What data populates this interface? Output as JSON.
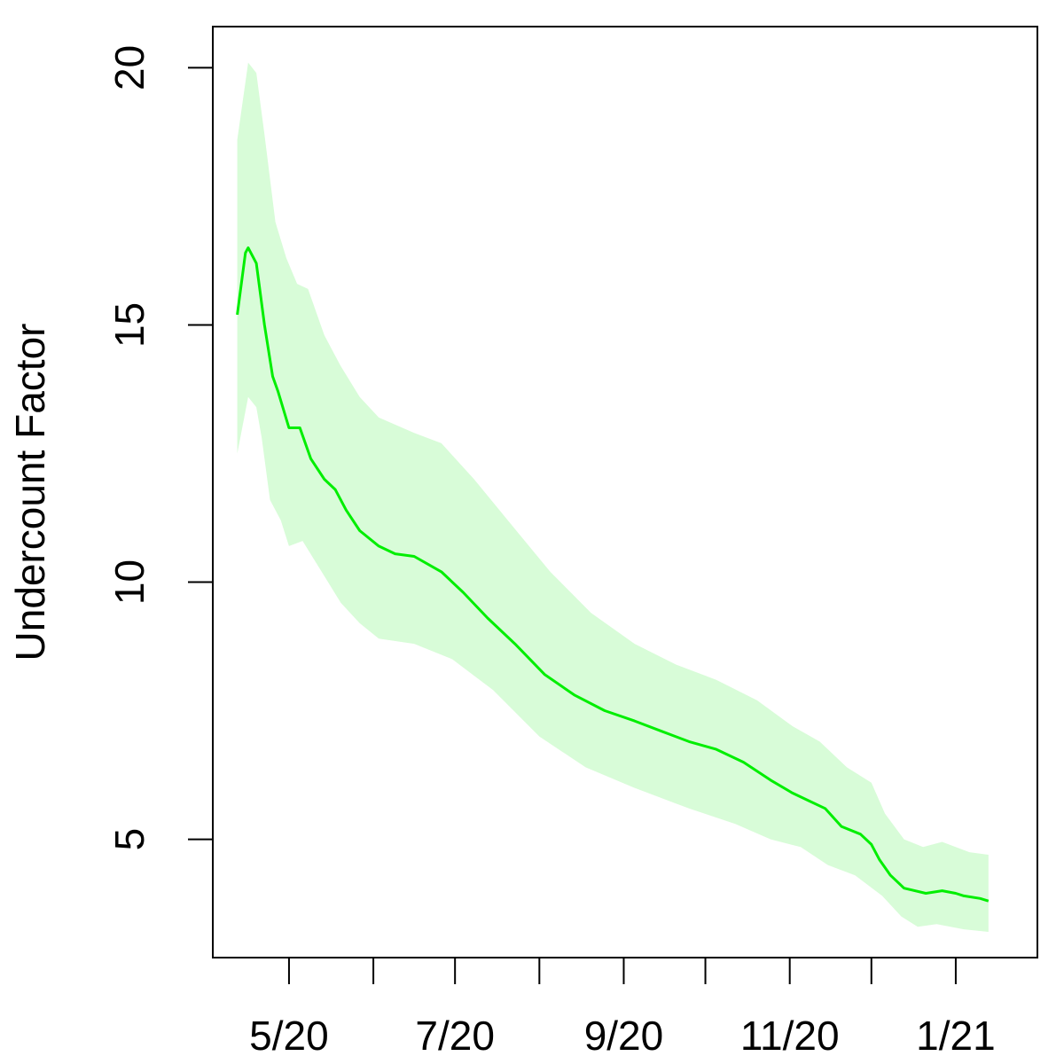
{
  "chart_data": {
    "type": "line",
    "title": "",
    "xlabel": "",
    "ylabel": "Undercount Factor",
    "x_tick_labels": [
      {
        "date": "2020-05-01",
        "label": "5/20",
        "show_label": true
      },
      {
        "date": "2020-06-01",
        "label": "6/20",
        "show_label": false
      },
      {
        "date": "2020-07-01",
        "label": "7/20",
        "show_label": true
      },
      {
        "date": "2020-08-01",
        "label": "8/20",
        "show_label": false
      },
      {
        "date": "2020-09-01",
        "label": "9/20",
        "show_label": true
      },
      {
        "date": "2020-10-01",
        "label": "10/20",
        "show_label": false
      },
      {
        "date": "2020-11-01",
        "label": "11/20",
        "show_label": true
      },
      {
        "date": "2020-12-01",
        "label": "12/20",
        "show_label": false
      },
      {
        "date": "2021-01-01",
        "label": "1/21",
        "show_label": true
      }
    ],
    "y_ticks": [
      5,
      10,
      15,
      20
    ],
    "y_tick_labels": [
      "5",
      "10",
      "15",
      "20"
    ],
    "xlim": [
      "2020-04-03",
      "2021-01-31"
    ],
    "ylim": [
      2.7,
      20.8
    ],
    "grid": false,
    "colors": {
      "line": "#00ee00",
      "band": "#d8fcd8",
      "axis": "#000000"
    },
    "series": [
      {
        "values": [
          [
            "2020-04-12",
            15.2
          ],
          [
            "2020-04-15",
            16.4
          ],
          [
            "2020-04-16",
            16.5
          ],
          [
            "2020-04-19",
            16.2
          ],
          [
            "2020-04-22",
            15.0
          ],
          [
            "2020-04-25",
            14.0
          ],
          [
            "2020-04-27",
            13.7
          ],
          [
            "2020-05-01",
            13.0
          ],
          [
            "2020-05-05",
            13.0
          ],
          [
            "2020-05-09",
            12.4
          ],
          [
            "2020-05-14",
            12.0
          ],
          [
            "2020-05-18",
            11.8
          ],
          [
            "2020-05-22",
            11.4
          ],
          [
            "2020-05-27",
            11.0
          ],
          [
            "2020-06-03",
            10.7
          ],
          [
            "2020-06-09",
            10.55
          ],
          [
            "2020-06-16",
            10.5
          ],
          [
            "2020-06-26",
            10.2
          ],
          [
            "2020-07-04",
            9.8
          ],
          [
            "2020-07-13",
            9.3
          ],
          [
            "2020-07-23",
            8.8
          ],
          [
            "2020-08-03",
            8.2
          ],
          [
            "2020-08-14",
            7.8
          ],
          [
            "2020-08-25",
            7.5
          ],
          [
            "2020-09-05",
            7.3
          ],
          [
            "2020-09-15",
            7.1
          ],
          [
            "2020-09-25",
            6.9
          ],
          [
            "2020-10-05",
            6.75
          ],
          [
            "2020-10-15",
            6.5
          ],
          [
            "2020-10-25",
            6.15
          ],
          [
            "2020-11-02",
            5.9
          ],
          [
            "2020-11-08",
            5.75
          ],
          [
            "2020-11-14",
            5.6
          ],
          [
            "2020-11-20",
            5.25
          ],
          [
            "2020-11-27",
            5.1
          ],
          [
            "2020-12-01",
            4.9
          ],
          [
            "2020-12-04",
            4.6
          ],
          [
            "2020-12-08",
            4.3
          ],
          [
            "2020-12-13",
            4.05
          ],
          [
            "2020-12-21",
            3.95
          ],
          [
            "2020-12-27",
            4.0
          ],
          [
            "2021-01-01",
            3.95
          ],
          [
            "2021-01-04",
            3.9
          ],
          [
            "2021-01-10",
            3.85
          ],
          [
            "2021-01-13",
            3.8
          ]
        ],
        "lower": [
          [
            "2020-04-12",
            12.5
          ],
          [
            "2020-04-16",
            13.6
          ],
          [
            "2020-04-19",
            13.4
          ],
          [
            "2020-04-21",
            12.8
          ],
          [
            "2020-04-24",
            11.6
          ],
          [
            "2020-04-28",
            11.2
          ],
          [
            "2020-05-01",
            10.7
          ],
          [
            "2020-05-06",
            10.8
          ],
          [
            "2020-05-13",
            10.2
          ],
          [
            "2020-05-20",
            9.6
          ],
          [
            "2020-05-27",
            9.2
          ],
          [
            "2020-06-03",
            8.9
          ],
          [
            "2020-06-16",
            8.8
          ],
          [
            "2020-06-30",
            8.5
          ],
          [
            "2020-07-15",
            7.9
          ],
          [
            "2020-08-01",
            7.0
          ],
          [
            "2020-08-18",
            6.4
          ],
          [
            "2020-09-05",
            6.0
          ],
          [
            "2020-09-25",
            5.6
          ],
          [
            "2020-10-12",
            5.3
          ],
          [
            "2020-10-25",
            5.0
          ],
          [
            "2020-11-05",
            4.85
          ],
          [
            "2020-11-15",
            4.5
          ],
          [
            "2020-11-25",
            4.3
          ],
          [
            "2020-12-05",
            3.9
          ],
          [
            "2020-12-12",
            3.5
          ],
          [
            "2020-12-18",
            3.3
          ],
          [
            "2020-12-25",
            3.35
          ],
          [
            "2021-01-04",
            3.25
          ],
          [
            "2021-01-13",
            3.2
          ]
        ],
        "upper": [
          [
            "2020-04-12",
            18.6
          ],
          [
            "2020-04-16",
            20.1
          ],
          [
            "2020-04-19",
            19.9
          ],
          [
            "2020-04-22",
            18.7
          ],
          [
            "2020-04-26",
            17.0
          ],
          [
            "2020-04-30",
            16.3
          ],
          [
            "2020-05-04",
            15.8
          ],
          [
            "2020-05-08",
            15.7
          ],
          [
            "2020-05-14",
            14.8
          ],
          [
            "2020-05-20",
            14.2
          ],
          [
            "2020-05-27",
            13.6
          ],
          [
            "2020-06-03",
            13.2
          ],
          [
            "2020-06-16",
            12.9
          ],
          [
            "2020-06-26",
            12.7
          ],
          [
            "2020-07-08",
            12.0
          ],
          [
            "2020-07-22",
            11.1
          ],
          [
            "2020-08-05",
            10.2
          ],
          [
            "2020-08-20",
            9.4
          ],
          [
            "2020-09-05",
            8.8
          ],
          [
            "2020-09-20",
            8.4
          ],
          [
            "2020-10-05",
            8.1
          ],
          [
            "2020-10-20",
            7.7
          ],
          [
            "2020-11-02",
            7.2
          ],
          [
            "2020-11-12",
            6.9
          ],
          [
            "2020-11-22",
            6.4
          ],
          [
            "2020-12-01",
            6.1
          ],
          [
            "2020-12-06",
            5.5
          ],
          [
            "2020-12-13",
            5.0
          ],
          [
            "2020-12-20",
            4.85
          ],
          [
            "2020-12-27",
            4.95
          ],
          [
            "2021-01-06",
            4.75
          ],
          [
            "2021-01-13",
            4.7
          ]
        ]
      }
    ]
  }
}
